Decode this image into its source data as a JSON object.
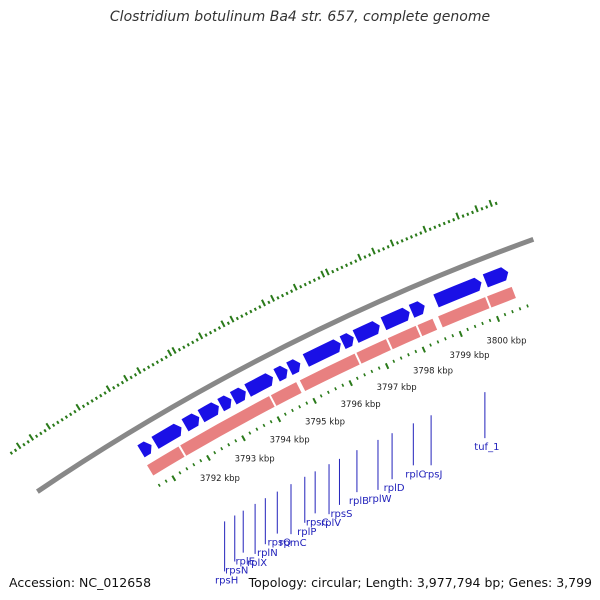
{
  "title": "Clostridium botulinum Ba4 str. 657, complete genome",
  "footer": {
    "accession": "Accession: NC_012658",
    "stats": "Topology: circular; Length: 3,977,794 bp; Genes: 3,799"
  },
  "colors": {
    "backbone": "#888888",
    "forward_gene": "#1a10e6",
    "reverse_gene": "#e88080",
    "gc_marks": "#2a7a1a",
    "gene_label": "#2222bb",
    "tick_label": "#222222"
  },
  "scale_ticks": [
    {
      "kbp": 3792,
      "label": "3792 kbp"
    },
    {
      "kbp": 3793,
      "label": "3793 kbp"
    },
    {
      "kbp": 3794,
      "label": "3794 kbp"
    },
    {
      "kbp": 3795,
      "label": "3795 kbp"
    },
    {
      "kbp": 3796,
      "label": "3796 kbp"
    },
    {
      "kbp": 3797,
      "label": "3797 kbp"
    },
    {
      "kbp": 3798,
      "label": "3798 kbp"
    },
    {
      "kbp": 3799,
      "label": "3799 kbp"
    },
    {
      "kbp": 3800,
      "label": "3800 kbp"
    }
  ],
  "gene_labels": [
    {
      "name": "rpsH",
      "kbp": 3791.55
    },
    {
      "name": "rpsN",
      "kbp": 3791.85
    },
    {
      "name": "rplE",
      "kbp": 3792.1
    },
    {
      "name": "rplX",
      "kbp": 3792.45
    },
    {
      "name": "rplN",
      "kbp": 3792.75
    },
    {
      "name": "rpsQ",
      "kbp": 3793.1
    },
    {
      "name": "rpmC",
      "kbp": 3793.5
    },
    {
      "name": "rplP",
      "kbp": 3793.9
    },
    {
      "name": "rpsC",
      "kbp": 3794.2
    },
    {
      "name": "rplV",
      "kbp": 3794.6
    },
    {
      "name": "rpsS",
      "kbp": 3794.9
    },
    {
      "name": "rplB",
      "kbp": 3795.4
    },
    {
      "name": "rplW",
      "kbp": 3796.0
    },
    {
      "name": "rplD",
      "kbp": 3796.4
    },
    {
      "name": "rplC",
      "kbp": 3797.0
    },
    {
      "name": "rpsJ",
      "kbp": 3797.5
    },
    {
      "name": "tuf_1",
      "kbp": 3799.0
    }
  ],
  "forward_genes": [
    [
      3790.65,
      3790.95
    ],
    [
      3791.05,
      3791.8
    ],
    [
      3791.9,
      3792.3
    ],
    [
      3792.35,
      3792.85
    ],
    [
      3792.9,
      3793.2
    ],
    [
      3793.25,
      3793.6
    ],
    [
      3793.65,
      3794.35
    ],
    [
      3794.45,
      3794.75
    ],
    [
      3794.8,
      3795.1
    ],
    [
      3795.25,
      3796.2
    ],
    [
      3796.25,
      3796.55
    ],
    [
      3796.6,
      3797.25
    ],
    [
      3797.35,
      3798.05
    ],
    [
      3798.1,
      3798.45
    ],
    [
      3798.75,
      3799.95
    ],
    [
      3800.05,
      3800.65
    ]
  ],
  "reverse_genes": [
    [
      3790.6,
      3791.5
    ],
    [
      3791.55,
      3794.05
    ],
    [
      3794.1,
      3794.8
    ],
    [
      3794.9,
      3796.4
    ],
    [
      3796.45,
      3797.25
    ],
    [
      3797.3,
      3798.05
    ],
    [
      3798.1,
      3798.5
    ],
    [
      3798.65,
      3799.9
    ],
    [
      3799.95,
      3800.6
    ]
  ]
}
